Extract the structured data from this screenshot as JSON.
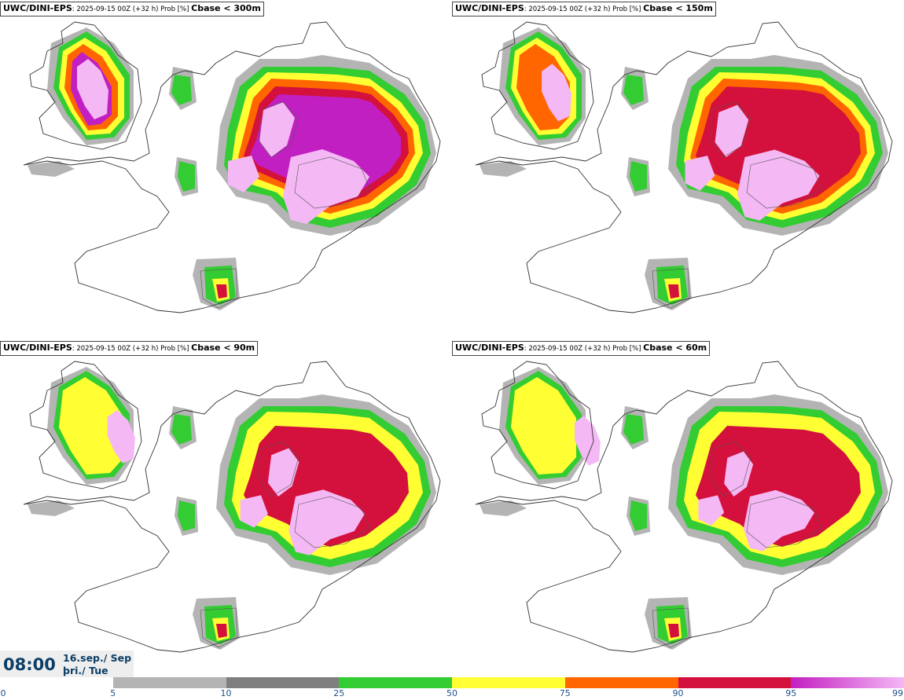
{
  "panels": [
    {
      "model": "UWC/DINI-EPS",
      "info": ": 2025-09-15 00Z (+32 h) Prob [%] ",
      "param": "Cbase < 300m",
      "level": 4
    },
    {
      "model": "UWC/DINI-EPS",
      "info": ": 2025-09-15 00Z (+32 h) Prob [%] ",
      "param": "Cbase < 150m",
      "level": 3
    },
    {
      "model": "UWC/DINI-EPS",
      "info": ": 2025-09-15 00Z (+32 h) Prob [%] ",
      "param": "Cbase < 90m",
      "level": 2
    },
    {
      "model": "UWC/DINI-EPS",
      "info": ": 2025-09-15 00Z (+32 h) Prob [%] ",
      "param": "Cbase < 60m",
      "level": 1
    }
  ],
  "time": "08:00",
  "date_line1": "16.sep./ Sep",
  "date_line2": "þri./ Tue",
  "colorbar": {
    "ticks": [
      "0",
      "5",
      "10",
      "25",
      "50",
      "75",
      "90",
      "95",
      "99"
    ],
    "colors": [
      "#ffffff",
      "#b4b4b4",
      "#7f7f7f",
      "#33cc33",
      "#ffff33",
      "#ff6600",
      "#d4103c",
      "#c21fc2"
    ],
    "last_gradient_to": "#f4b8f4"
  },
  "legend_colors": {
    "grey_light": "#b4b4b4",
    "grey_dark": "#7f7f7f",
    "green": "#33cc33",
    "yellow": "#ffff33",
    "orange": "#ff6600",
    "red": "#d4103c",
    "magenta": "#c21fc2",
    "pink": "#f4b8f4"
  }
}
